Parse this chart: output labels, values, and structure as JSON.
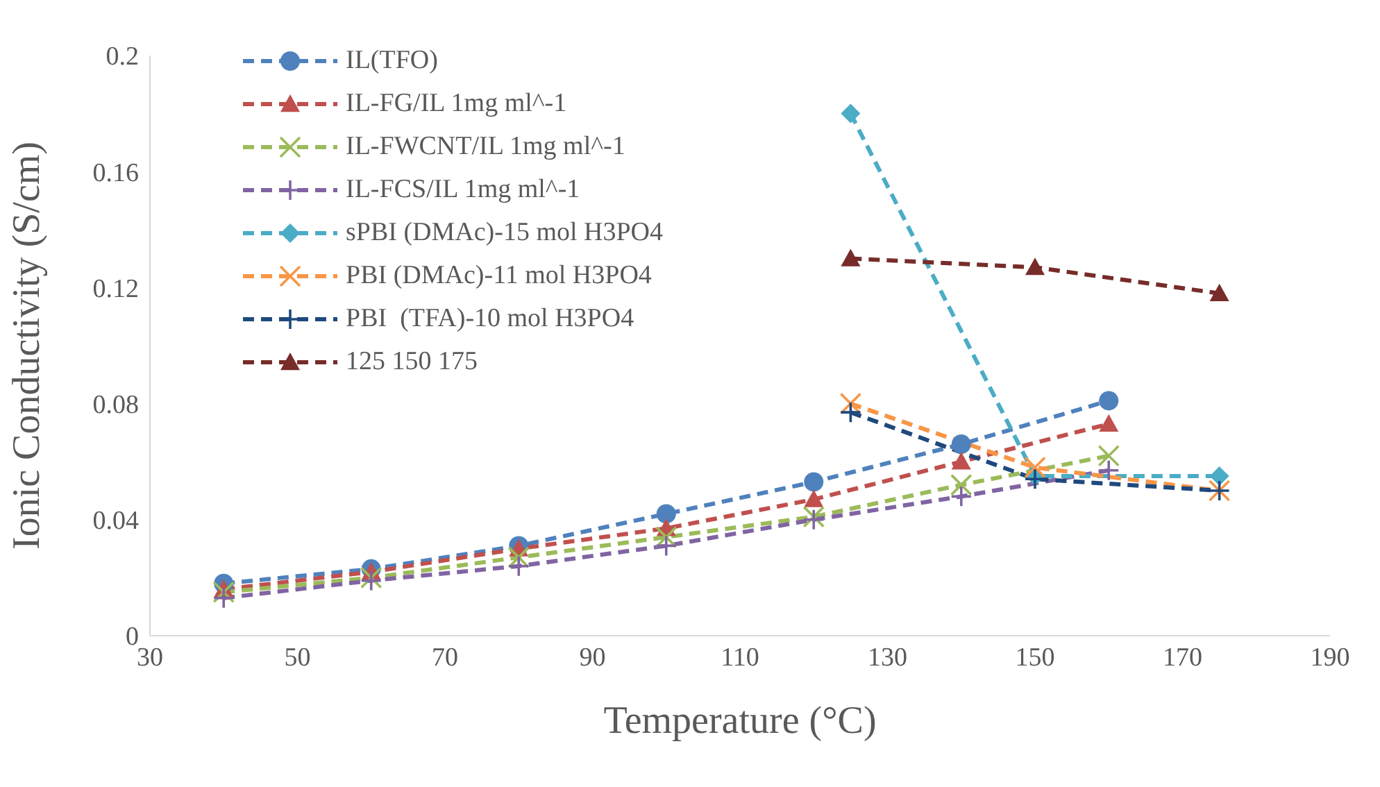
{
  "chart_data": {
    "type": "line",
    "xlabel": "Temperature (°C)",
    "ylabel": "Ionic Conductivity (S/cm)",
    "xlim": [
      30,
      190
    ],
    "xticks": [
      30,
      50,
      70,
      90,
      110,
      130,
      150,
      170,
      190
    ],
    "ylim": [
      0,
      0.2
    ],
    "yticks": [
      0,
      0.04,
      0.08,
      0.12,
      0.16,
      0.2
    ],
    "grid": false,
    "legend": "top left",
    "line_style": "dashed",
    "series": [
      {
        "name": "IL(TFO)",
        "color": "#4f81bd",
        "marker": "circle",
        "x": [
          40,
          60,
          80,
          100,
          120,
          140,
          160
        ],
        "values": [
          0.018,
          0.023,
          0.031,
          0.042,
          0.053,
          0.066,
          0.081
        ]
      },
      {
        "name": "IL-FG/IL 1mg ml^-1",
        "color": "#c0504d",
        "marker": "triangle",
        "x": [
          40,
          60,
          80,
          100,
          120,
          140,
          160
        ],
        "values": [
          0.016,
          0.022,
          0.03,
          0.037,
          0.047,
          0.06,
          0.073
        ]
      },
      {
        "name": "IL-FWCNT/IL 1mg ml^-1",
        "color": "#9bbb59",
        "marker": "cross",
        "x": [
          40,
          60,
          80,
          100,
          120,
          140,
          160
        ],
        "values": [
          0.015,
          0.02,
          0.027,
          0.034,
          0.041,
          0.052,
          0.062
        ]
      },
      {
        "name": "IL-FCS/IL 1mg ml^-1",
        "color": "#8064a2",
        "marker": "plus",
        "x": [
          40,
          60,
          80,
          100,
          120,
          140,
          160
        ],
        "values": [
          0.013,
          0.019,
          0.024,
          0.031,
          0.04,
          0.048,
          0.057
        ]
      },
      {
        "name": "sPBI (DMAc)-15 mol H3PO4",
        "color": "#4bacc6",
        "marker": "diamond",
        "x": [
          125,
          150,
          175
        ],
        "values": [
          0.18,
          0.055,
          0.055
        ]
      },
      {
        "name": "PBI (DMAc)-11 mol H3PO4",
        "color": "#f79646",
        "marker": "cross",
        "x": [
          125,
          150,
          175
        ],
        "values": [
          0.08,
          0.058,
          0.05
        ]
      },
      {
        "name": "PBI  (TFA)-10 mol H3PO4",
        "color": "#1f497d",
        "marker": "plus",
        "x": [
          125,
          150,
          175
        ],
        "values": [
          0.077,
          0.054,
          0.05
        ]
      },
      {
        "name": "125 150 175",
        "color": "#772c2a",
        "marker": "triangle",
        "x": [
          125,
          150,
          175
        ],
        "values": [
          0.13,
          0.127,
          0.118
        ]
      }
    ]
  }
}
